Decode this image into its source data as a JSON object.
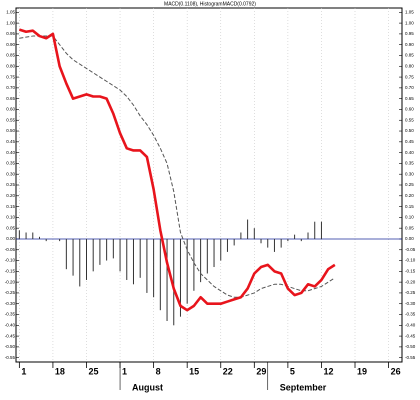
{
  "chart_data": {
    "type": "macd",
    "title": "MACD(0.1108), HistogramMACD(0.0792)",
    "x": [
      0,
      1,
      2,
      3,
      4,
      5,
      6,
      7,
      8,
      9,
      10,
      11,
      12,
      13,
      14,
      15,
      16,
      17,
      18,
      19,
      20,
      21,
      22,
      23,
      24,
      25,
      26,
      27,
      28,
      29,
      30,
      31,
      32,
      33,
      34,
      35,
      36,
      37,
      38,
      39,
      40,
      41,
      42,
      43,
      44,
      45,
      46,
      47
    ],
    "series": [
      {
        "name": "MACD",
        "kind": "line",
        "color": "#e8141c",
        "values": [
          0.97,
          0.96,
          0.965,
          0.94,
          0.93,
          0.95,
          0.8,
          0.72,
          0.65,
          0.66,
          0.67,
          0.66,
          0.66,
          0.65,
          0.58,
          0.49,
          0.42,
          0.41,
          0.41,
          0.38,
          0.23,
          0.04,
          -0.11,
          -0.23,
          -0.31,
          -0.33,
          -0.31,
          -0.27,
          -0.3,
          -0.3,
          -0.3,
          -0.29,
          -0.28,
          -0.27,
          -0.23,
          -0.16,
          -0.13,
          -0.12,
          -0.15,
          -0.16,
          -0.23,
          -0.26,
          -0.25,
          -0.21,
          -0.22,
          -0.19,
          -0.14,
          -0.12
        ]
      },
      {
        "name": "Signal",
        "kind": "dashed",
        "color": "#555555",
        "values": [
          0.93,
          0.935,
          0.94,
          0.94,
          0.94,
          0.94,
          0.9,
          0.86,
          0.83,
          0.81,
          0.79,
          0.77,
          0.75,
          0.73,
          0.71,
          0.69,
          0.66,
          0.62,
          0.57,
          0.53,
          0.48,
          0.42,
          0.35,
          0.22,
          0.03,
          -0.05,
          -0.11,
          -0.16,
          -0.19,
          -0.22,
          -0.24,
          -0.26,
          -0.27,
          -0.27,
          -0.26,
          -0.25,
          -0.23,
          -0.22,
          -0.21,
          -0.21,
          -0.22,
          -0.23,
          -0.24,
          -0.24,
          -0.23,
          -0.22,
          -0.2,
          -0.18
        ]
      },
      {
        "name": "Histogram",
        "kind": "histogram",
        "color": "#333333",
        "values": [
          0.04,
          0.03,
          0.03,
          0.01,
          -0.01,
          0.0,
          -0.01,
          -0.14,
          -0.17,
          -0.22,
          -0.19,
          -0.15,
          -0.12,
          -0.1,
          -0.09,
          -0.15,
          -0.19,
          -0.21,
          -0.18,
          -0.25,
          -0.27,
          -0.33,
          -0.38,
          -0.4,
          -0.36,
          -0.3,
          -0.24,
          -0.2,
          -0.16,
          -0.13,
          -0.1,
          -0.06,
          -0.03,
          0.03,
          0.09,
          0.05,
          -0.02,
          -0.04,
          -0.06,
          -0.04,
          -0.01,
          0.02,
          -0.01,
          0.03,
          0.08,
          0.08,
          null,
          null
        ]
      }
    ],
    "xlim": [
      -0.5,
      57
    ],
    "xticks": [
      {
        "value": 0,
        "label": "1"
      },
      {
        "value": 5,
        "label": "18"
      },
      {
        "value": 10,
        "label": "25"
      },
      {
        "value": 15,
        "label": "1"
      },
      {
        "value": 20,
        "label": "8"
      },
      {
        "value": 25,
        "label": "15"
      },
      {
        "value": 30,
        "label": "22"
      },
      {
        "value": 35,
        "label": "29"
      },
      {
        "value": 40,
        "label": "5"
      },
      {
        "value": 45,
        "label": "12"
      },
      {
        "value": 50,
        "label": "19"
      },
      {
        "value": 55,
        "label": "26"
      }
    ],
    "months": [
      {
        "value": 15,
        "label": "August"
      },
      {
        "value": 37,
        "label": "September"
      }
    ],
    "ylim": [
      -0.57,
      1.07
    ],
    "yticks": [
      1.05,
      {
        "value": 1,
        "label": "1.00"
      },
      0.95,
      {
        "value": 0.9,
        "label": "0.90"
      },
      0.85,
      {
        "value": 0.8,
        "label": "0.80"
      },
      0.75,
      {
        "value": 0.7,
        "label": "0.70"
      },
      0.65,
      {
        "value": 0.6,
        "label": "0.60"
      },
      0.55,
      {
        "value": 0.5,
        "label": "0.50"
      },
      0.45,
      {
        "value": 0.4,
        "label": "0.40"
      },
      0.35,
      {
        "value": 0.3,
        "label": "0.30"
      },
      0.25,
      {
        "value": 0.2,
        "label": "0.20"
      },
      0.15,
      {
        "value": 0.1,
        "label": "0.10"
      },
      0.05,
      {
        "value": 0,
        "label": "0.00"
      },
      -0.05,
      {
        "value": -0.1,
        "label": "-0.10"
      },
      -0.15,
      {
        "value": -0.2,
        "label": "-0.20"
      },
      -0.25,
      {
        "value": -0.3,
        "label": "-0.30"
      },
      -0.35,
      {
        "value": -0.4,
        "label": "-0.40"
      },
      -0.45,
      {
        "value": -0.5,
        "label": "-0.50"
      },
      -0.55
    ],
    "zero_line": true,
    "grid": true
  }
}
